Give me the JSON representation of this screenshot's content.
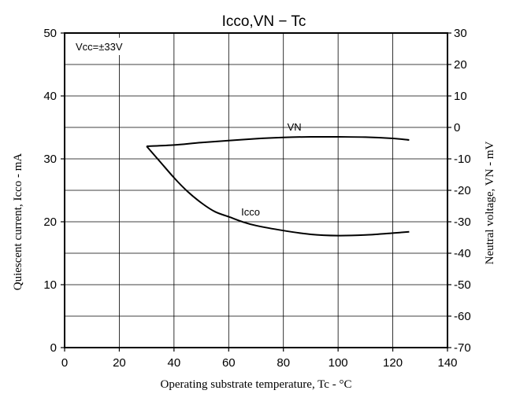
{
  "chart_data": {
    "type": "line",
    "title": "Icco,VN − Tc",
    "xlabel": "Operating substrate temperature, Tc - °C",
    "ylabel_left": "Quiescent current, Icco - mA",
    "ylabel_right": "Neutral voltage, VN - mV",
    "annotation": "Vcc=±33V",
    "xlim": [
      0,
      140
    ],
    "ylim_left": [
      0,
      50
    ],
    "ylim_right": [
      -70,
      30
    ],
    "x_ticks": [
      "0",
      "20",
      "40",
      "60",
      "80",
      "100",
      "120",
      "140"
    ],
    "y_left_ticks": [
      "0",
      "10",
      "20",
      "30",
      "40",
      "50"
    ],
    "y_right_ticks": [
      "-70",
      "-60",
      "-50",
      "-40",
      "-30",
      "-20",
      "-10",
      "0",
      "10",
      "20",
      "30"
    ],
    "grid": true,
    "series": [
      {
        "name": "VN",
        "axis": "right",
        "x": [
          30,
          40,
          50,
          60,
          70,
          80,
          90,
          100,
          110,
          120,
          126
        ],
        "y": [
          -6,
          -5.6,
          -4.8,
          -4.2,
          -3.6,
          -3.2,
          -3,
          -3,
          -3.1,
          -3.5,
          -4
        ]
      },
      {
        "name": "Icco",
        "axis": "left",
        "x": [
          30,
          35,
          40,
          45,
          50,
          55,
          60,
          65,
          70,
          80,
          90,
          100,
          110,
          120,
          126
        ],
        "y": [
          32,
          29.5,
          27,
          24.8,
          23,
          21.6,
          20.8,
          20,
          19.4,
          18.6,
          18,
          17.8,
          17.9,
          18.2,
          18.4
        ]
      }
    ]
  }
}
